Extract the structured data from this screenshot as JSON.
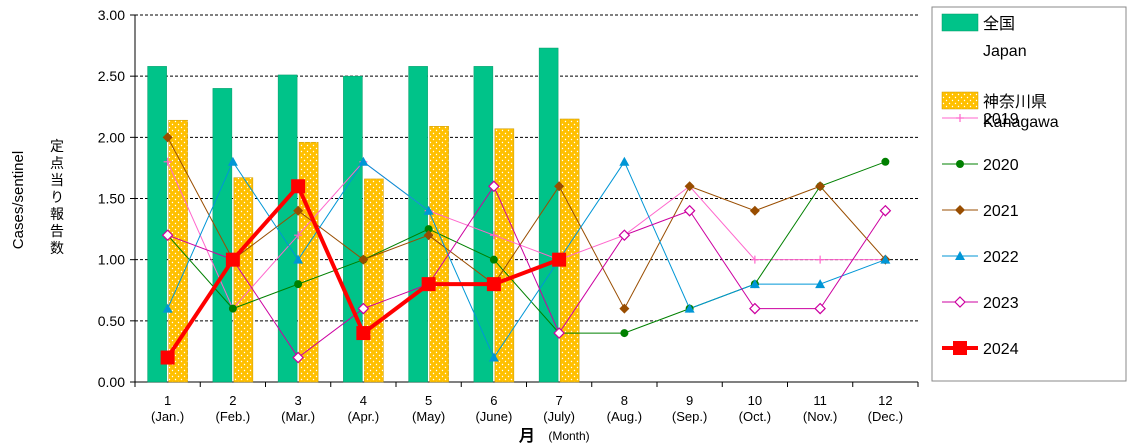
{
  "chart_data": {
    "type": "bar+line",
    "ylabel_en": "Cases/sentinel",
    "ylabel_ja": "定点当り報告数",
    "xlabel_ja": "月",
    "xlabel_en": "(Month)",
    "ylim": [
      0,
      3
    ],
    "yticks": [
      "0.00",
      "0.50",
      "1.00",
      "1.50",
      "2.00",
      "2.50",
      "3.00"
    ],
    "grid": "horizontal-dashed",
    "legend_position": "right",
    "categories": [
      {
        "num": "1",
        "name": "(Jan.)"
      },
      {
        "num": "2",
        "name": "(Feb.)"
      },
      {
        "num": "3",
        "name": "(Mar.)"
      },
      {
        "num": "4",
        "name": "(Apr.)"
      },
      {
        "num": "5",
        "name": "(May)"
      },
      {
        "num": "6",
        "name": "(June)"
      },
      {
        "num": "7",
        "name": "(July)"
      },
      {
        "num": "8",
        "name": "(Aug.)"
      },
      {
        "num": "9",
        "name": "(Sep.)"
      },
      {
        "num": "10",
        "name": "(Oct.)"
      },
      {
        "num": "11",
        "name": "(Nov.)"
      },
      {
        "num": "12",
        "name": "(Dec.)"
      }
    ],
    "bars": [
      {
        "name": "全国",
        "name2": "Japan",
        "color": "#00c389",
        "values": [
          2.58,
          2.4,
          2.51,
          2.5,
          2.58,
          2.58,
          2.73
        ]
      },
      {
        "name": "神奈川県",
        "name2": "Kanagawa",
        "color": "#ffc000",
        "values": [
          2.14,
          1.67,
          1.96,
          1.66,
          2.09,
          2.07,
          2.15
        ]
      }
    ],
    "lines": [
      {
        "name": "2019",
        "color": "#ff66cc",
        "marker": "plus",
        "width": 1,
        "values": [
          1.8,
          0.6,
          1.2,
          1.8,
          1.4,
          1.2,
          1.0,
          1.2,
          1.6,
          1.0,
          1.0,
          1.0
        ]
      },
      {
        "name": "2020",
        "color": "#008000",
        "marker": "circle",
        "width": 1,
        "values": [
          1.2,
          0.6,
          0.8,
          1.0,
          1.25,
          1.0,
          0.4,
          0.4,
          0.6,
          0.8,
          1.6,
          1.8
        ]
      },
      {
        "name": "2021",
        "color": "#994d00",
        "marker": "diamond",
        "width": 1,
        "values": [
          2.0,
          1.0,
          1.4,
          1.0,
          1.2,
          0.8,
          1.6,
          0.6,
          1.6,
          1.4,
          1.6,
          1.0
        ]
      },
      {
        "name": "2022",
        "color": "#0096d6",
        "marker": "triangle",
        "width": 1,
        "values": [
          0.6,
          1.8,
          1.0,
          1.8,
          1.4,
          0.2,
          1.0,
          1.8,
          0.6,
          0.8,
          0.8,
          1.0
        ]
      },
      {
        "name": "2023",
        "color": "#cc00a0",
        "marker": "diamond-open",
        "width": 1,
        "values": [
          1.2,
          1.0,
          0.2,
          0.6,
          0.8,
          1.6,
          0.4,
          1.2,
          1.4,
          0.6,
          0.6,
          1.4
        ]
      },
      {
        "name": "2024",
        "color": "#ff0000",
        "marker": "square",
        "width": 4,
        "values": [
          0.2,
          1.0,
          1.6,
          0.4,
          0.8,
          0.8,
          1.0
        ]
      }
    ]
  }
}
